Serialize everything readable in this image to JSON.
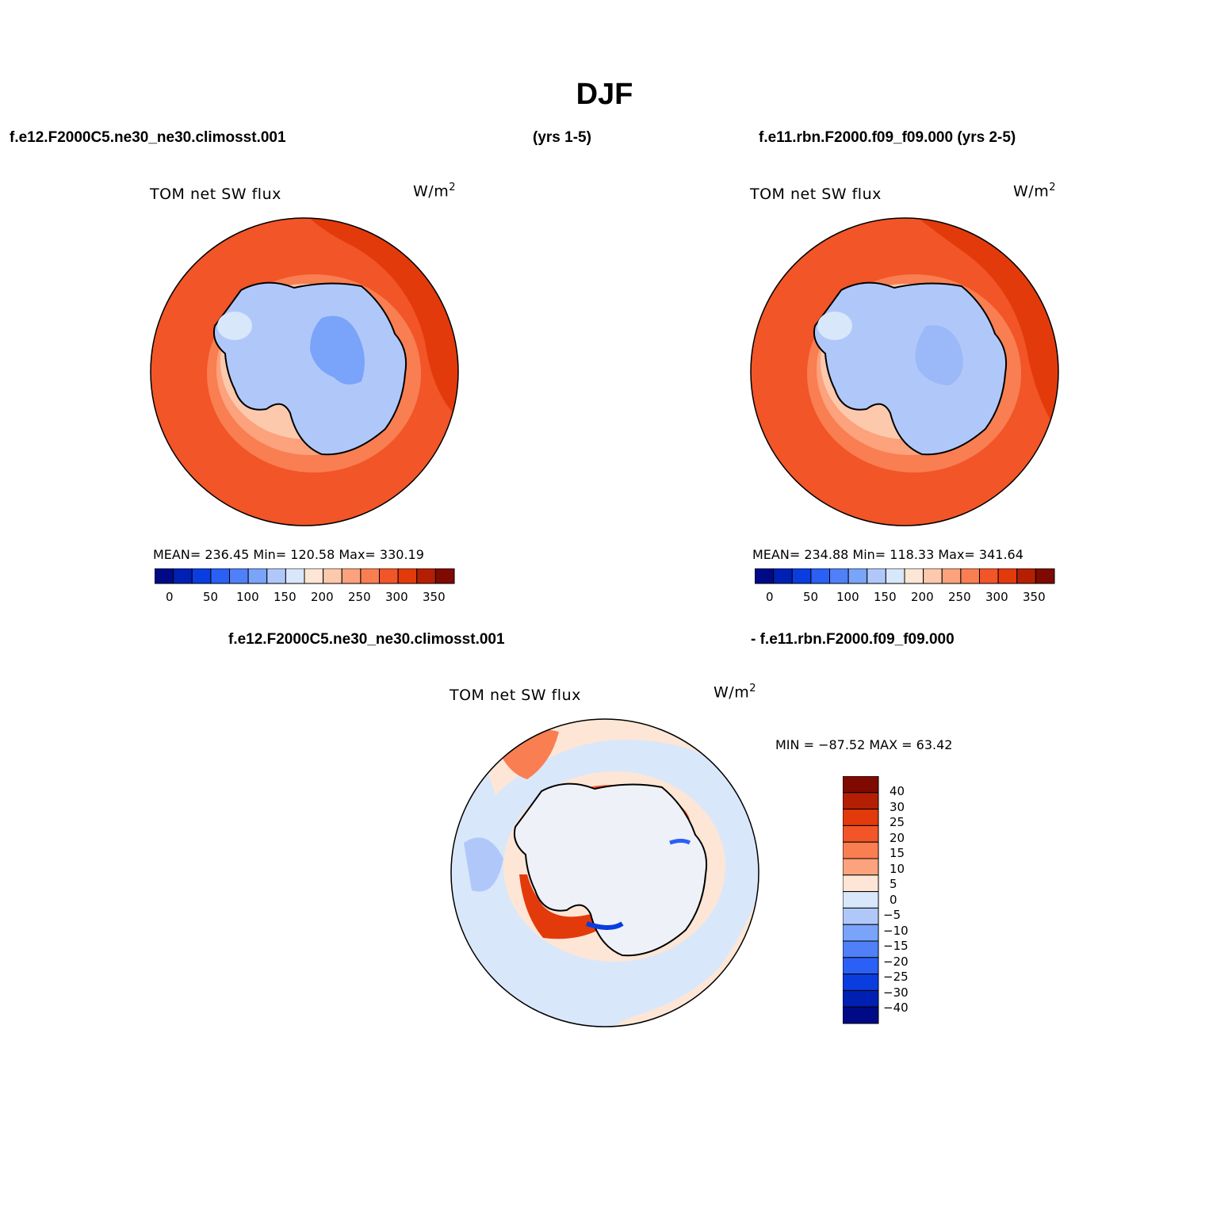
{
  "page": {
    "title": "DJF"
  },
  "headers": {
    "left_case": "f.e12.F2000C5.ne30_ne30.climosst.001",
    "left_years": "(yrs 1-5)",
    "right_case": "f.e11.rbn.F2000.f09_f09.000 (yrs 2-5)",
    "diff_case_a": "f.e12.F2000C5.ne30_ne30.climosst.001",
    "diff_case_b": "- f.e11.rbn.F2000.f09_f09.000"
  },
  "panels": [
    {
      "id": "panel-left",
      "variable": "TOM net SW flux",
      "units_base": "W/m",
      "units_exp": "2",
      "stats": "MEAN= 236.45   Min= 120.58   Max= 330.19"
    },
    {
      "id": "panel-right",
      "variable": "TOM net SW flux",
      "units_base": "W/m",
      "units_exp": "2",
      "stats": "MEAN= 234.88   Min= 118.33   Max= 341.64"
    },
    {
      "id": "panel-diff",
      "variable": "TOM net SW flux",
      "units_base": "W/m",
      "units_exp": "2",
      "stats": "MIN = −87.52 MAX =  63.42"
    }
  ],
  "colorbar_horizontal": {
    "colors": [
      "#000a86",
      "#0020b4",
      "#0a3de0",
      "#2a60f5",
      "#4f80f7",
      "#7aa3fa",
      "#b0c8f9",
      "#d9e7fb",
      "#fde6d5",
      "#fdc9ad",
      "#fca27c",
      "#f97e52",
      "#f25527",
      "#e33a0c",
      "#b41f04",
      "#7e0a02"
    ],
    "ticks": [
      "0",
      "50",
      "100",
      "150",
      "200",
      "250",
      "300",
      "350"
    ]
  },
  "colorbar_vertical": {
    "colors": [
      "#7e0a02",
      "#b41f04",
      "#e33a0c",
      "#f25527",
      "#f97e52",
      "#fca27c",
      "#fde6d5",
      "#d9e7fb",
      "#b0c8f9",
      "#7aa3fa",
      "#4f80f7",
      "#2a60f5",
      "#0a3de0",
      "#0020b4",
      "#000a86"
    ],
    "ticks": [
      "40",
      "30",
      "25",
      "20",
      "15",
      "10",
      "5",
      "0",
      "−5",
      "−10",
      "−15",
      "−20",
      "−25",
      "−30",
      "−40"
    ]
  }
}
